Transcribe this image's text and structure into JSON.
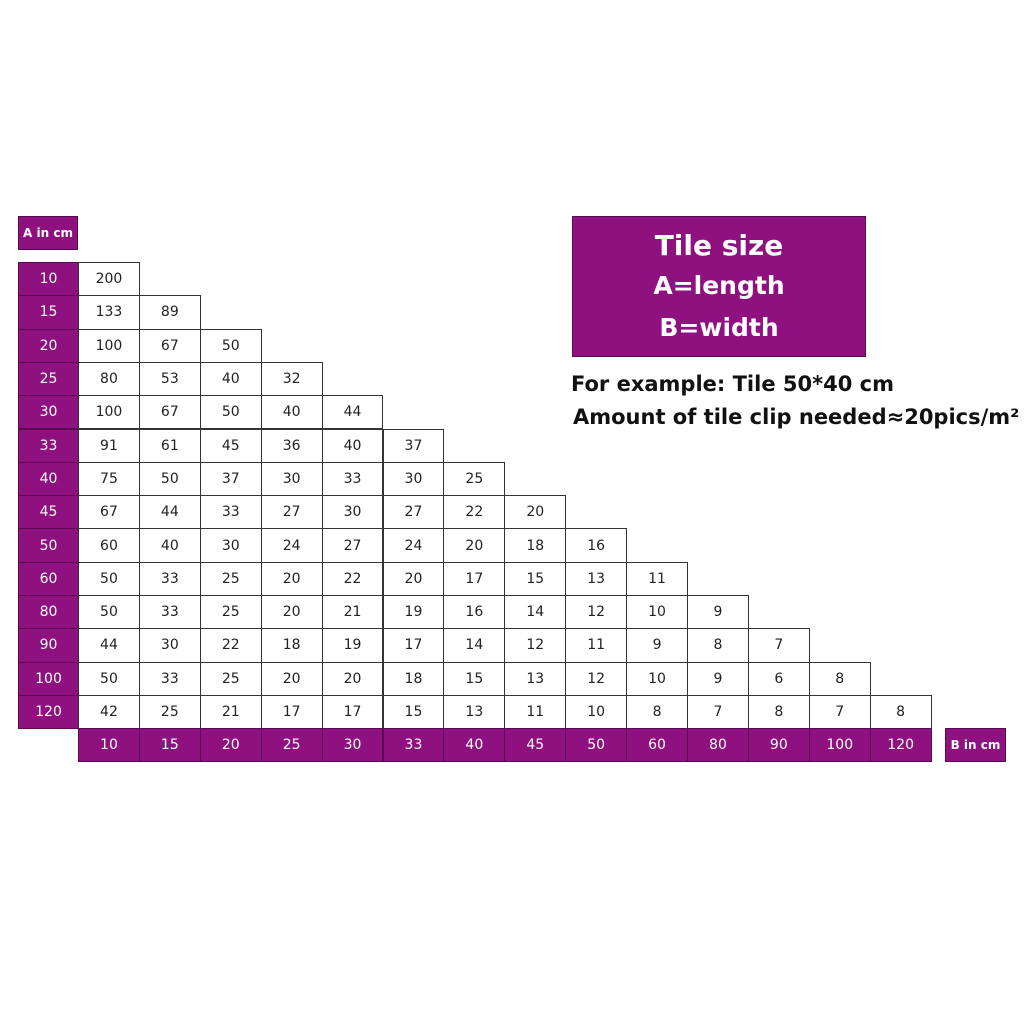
{
  "labels": {
    "a_axis": "A in cm",
    "b_axis": "B in cm"
  },
  "info": {
    "title": "Tile size",
    "line_a": "A=length",
    "line_b": "B=width",
    "example": "For example: Tile 50*40 cm",
    "amount": "Amount of tile clip needed≈20pics/m²"
  },
  "colors": {
    "accent": "#8f117f"
  },
  "table": {
    "a_values": [
      "10",
      "15",
      "20",
      "25",
      "30",
      "33",
      "40",
      "45",
      "50",
      "60",
      "80",
      "90",
      "100",
      "120"
    ],
    "b_values": [
      "10",
      "15",
      "20",
      "25",
      "30",
      "33",
      "40",
      "45",
      "50",
      "60",
      "80",
      "90",
      "100",
      "120"
    ],
    "rows": [
      [
        "200"
      ],
      [
        "133",
        "89"
      ],
      [
        "100",
        "67",
        "50"
      ],
      [
        "80",
        "53",
        "40",
        "32"
      ],
      [
        "100",
        "67",
        "50",
        "40",
        "44"
      ],
      [
        "91",
        "61",
        "45",
        "36",
        "40",
        "37"
      ],
      [
        "75",
        "50",
        "37",
        "30",
        "33",
        "30",
        "25"
      ],
      [
        "67",
        "44",
        "33",
        "27",
        "30",
        "27",
        "22",
        "20"
      ],
      [
        "60",
        "40",
        "30",
        "24",
        "27",
        "24",
        "20",
        "18",
        "16"
      ],
      [
        "50",
        "33",
        "25",
        "20",
        "22",
        "20",
        "17",
        "15",
        "13",
        "11"
      ],
      [
        "50",
        "33",
        "25",
        "20",
        "21",
        "19",
        "16",
        "14",
        "12",
        "10",
        "9"
      ],
      [
        "44",
        "30",
        "22",
        "18",
        "19",
        "17",
        "14",
        "12",
        "11",
        "9",
        "8",
        "7"
      ],
      [
        "50",
        "33",
        "25",
        "20",
        "20",
        "18",
        "15",
        "13",
        "12",
        "10",
        "9",
        "6",
        "8"
      ],
      [
        "42",
        "25",
        "21",
        "17",
        "17",
        "15",
        "13",
        "11",
        "10",
        "8",
        "7",
        "8",
        "7",
        "8"
      ]
    ]
  }
}
